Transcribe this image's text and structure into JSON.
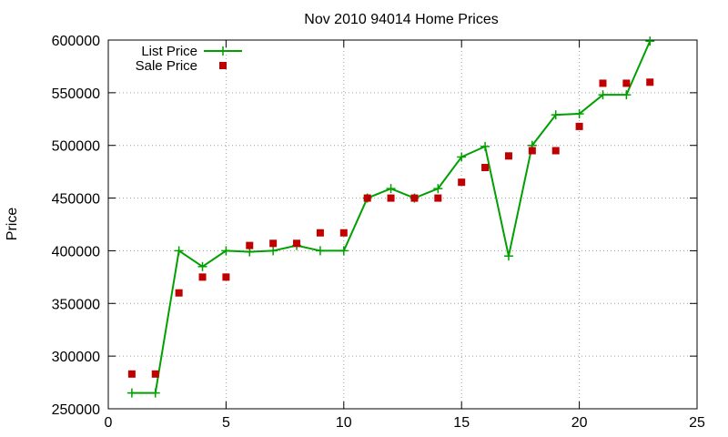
{
  "chart_data": {
    "type": "line",
    "title": "Nov 2010 94014 Home Prices",
    "xlabel": "",
    "ylabel": "Price",
    "xlim": [
      0,
      25
    ],
    "ylim": [
      250000,
      600000
    ],
    "xticks": [
      0,
      5,
      10,
      15,
      20,
      25
    ],
    "yticks": [
      250000,
      300000,
      350000,
      400000,
      450000,
      500000,
      550000,
      600000
    ],
    "grid": true,
    "legend_position": "top-left",
    "series": [
      {
        "name": "List Price",
        "style": "line+cross",
        "color": "#00a000",
        "x": [
          1,
          2,
          3,
          4,
          5,
          6,
          7,
          8,
          9,
          10,
          11,
          12,
          13,
          14,
          15,
          16,
          17,
          18,
          19,
          20,
          21,
          22,
          23
        ],
        "y": [
          265000,
          265000,
          400000,
          385000,
          400000,
          399000,
          400000,
          405000,
          400000,
          400000,
          450000,
          459000,
          450000,
          459000,
          489000,
          499000,
          395000,
          500000,
          529000,
          530000,
          548000,
          548000,
          599000
        ]
      },
      {
        "name": "Sale Price",
        "style": "square",
        "color": "#c00000",
        "x": [
          1,
          2,
          3,
          4,
          5,
          6,
          7,
          8,
          9,
          10,
          11,
          12,
          13,
          14,
          15,
          16,
          17,
          18,
          19,
          20,
          21,
          22,
          23
        ],
        "y": [
          283000,
          283000,
          360000,
          375000,
          375000,
          405000,
          407000,
          407000,
          417000,
          417000,
          450000,
          450000,
          450000,
          450000,
          465000,
          479000,
          490000,
          495000,
          495000,
          518000,
          559000,
          559000,
          560000
        ]
      }
    ]
  }
}
